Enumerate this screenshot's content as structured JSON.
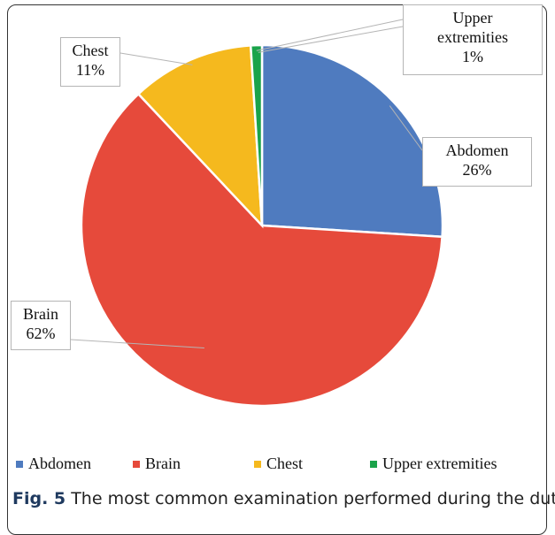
{
  "chart_data": {
    "type": "pie",
    "categories": [
      "Abdomen",
      "Brain",
      "Chest",
      "Upper extremities"
    ],
    "values": [
      26,
      62,
      11,
      1
    ],
    "value_labels": [
      "26%",
      "62%",
      "11%",
      "1%"
    ],
    "colors": [
      "#4f7bbf",
      "#e64a3b",
      "#f5b91e",
      "#1aa34a"
    ],
    "legend": "bottom",
    "caption_label": "Fig. 5",
    "caption": "The most common examination performed during the duty"
  }
}
